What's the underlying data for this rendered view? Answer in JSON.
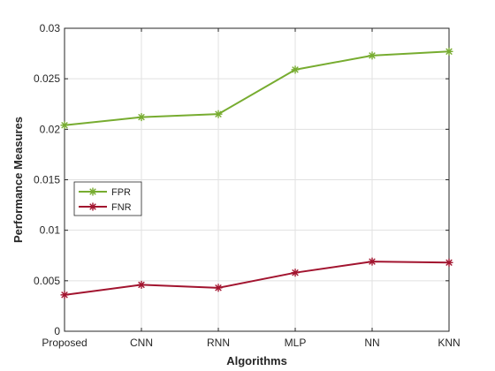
{
  "chart_data": {
    "type": "line",
    "title": "",
    "xlabel": "Algorithms",
    "ylabel": "Performance Measures",
    "categories": [
      "Proposed",
      "CNN",
      "RNN",
      "MLP",
      "NN",
      "KNN"
    ],
    "ylim": [
      0,
      0.03
    ],
    "yticks": [
      0,
      0.005,
      0.01,
      0.015,
      0.02,
      0.025,
      0.03
    ],
    "ytick_labels": [
      "0",
      "0.005",
      "0.01",
      "0.015",
      "0.02",
      "0.025",
      "0.03"
    ],
    "grid": true,
    "legend_position": "left-center",
    "series": [
      {
        "name": "FPR",
        "color": "#77ac30",
        "marker": "asterisk",
        "values": [
          0.0204,
          0.0212,
          0.0215,
          0.0259,
          0.0273,
          0.0277
        ]
      },
      {
        "name": "FNR",
        "color": "#a2142f",
        "marker": "asterisk",
        "values": [
          0.0036,
          0.0046,
          0.0043,
          0.0058,
          0.0069,
          0.0068
        ]
      }
    ]
  }
}
